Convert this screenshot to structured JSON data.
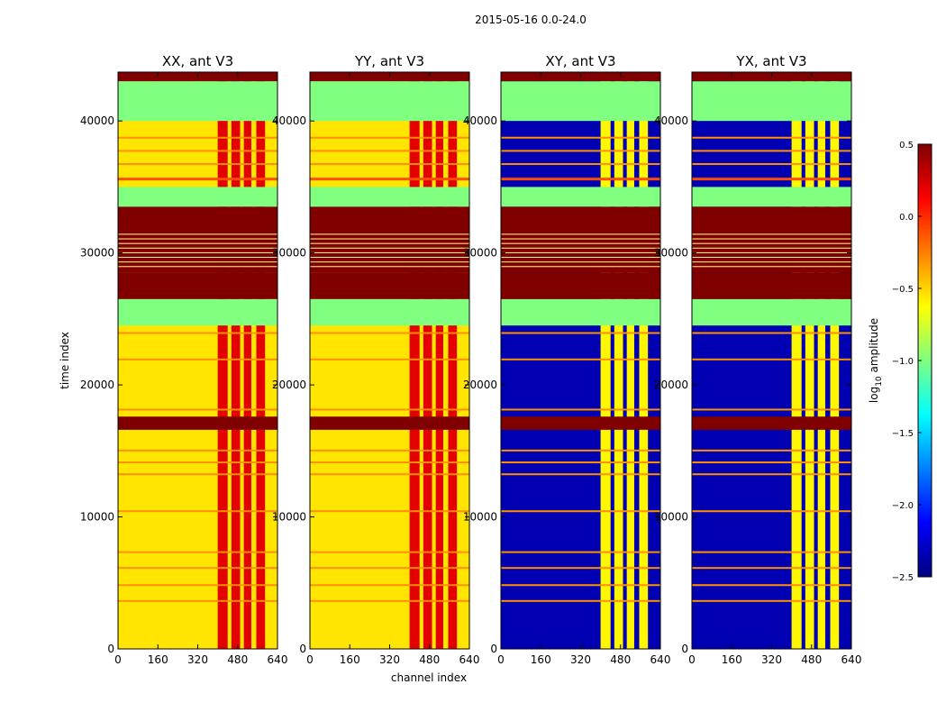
{
  "figure_title": "2015-05-16 0.0-24.0",
  "chart_data": {
    "type": "heatmap",
    "xlabel": "channel index",
    "ylabel": "time index",
    "x_ticks": [
      0,
      160,
      320,
      480,
      640
    ],
    "y_ticks": [
      0,
      10000,
      20000,
      30000,
      40000
    ],
    "xlim": [
      0,
      640
    ],
    "ylim": [
      0,
      43700
    ],
    "colorbar": {
      "label": "log10 amplitude",
      "label_base": "log",
      "label_sub": "10",
      "label_rest": " amplitude",
      "colormap": "jet",
      "range": [
        -2.5,
        0.5
      ],
      "ticks": [
        "0.5",
        "0.0",
        "−0.5",
        "−1.0",
        "−1.5",
        "−2.0",
        "−2.5"
      ]
    },
    "panels": [
      {
        "title": "XX, ant V3",
        "baseline": -0.55
      },
      {
        "title": "YY, ant V3",
        "baseline": -0.55
      },
      {
        "title": "XY, ant V3",
        "baseline": -2.35
      },
      {
        "title": "YX, ant V3",
        "baseline": -2.35
      }
    ],
    "flagged_value": -1.0,
    "saturated_value": 0.5,
    "bands": [
      {
        "from": 43000,
        "to": 43700,
        "value": 0.5
      },
      {
        "from": 40000,
        "to": 43000,
        "value": -1.0
      },
      {
        "from": 33500,
        "to": 35000,
        "value": -1.0
      },
      {
        "from": 28500,
        "to": 33500,
        "value": 0.5
      },
      {
        "from": 26500,
        "to": 28500,
        "value": 0.5
      },
      {
        "from": 24500,
        "to": 26500,
        "value": -1.0
      },
      {
        "from": 16600,
        "to": 17600,
        "value": 0.5
      }
    ],
    "rfi_channels": [
      [
        400,
        440
      ],
      [
        455,
        490
      ],
      [
        505,
        535
      ],
      [
        555,
        590
      ]
    ]
  }
}
